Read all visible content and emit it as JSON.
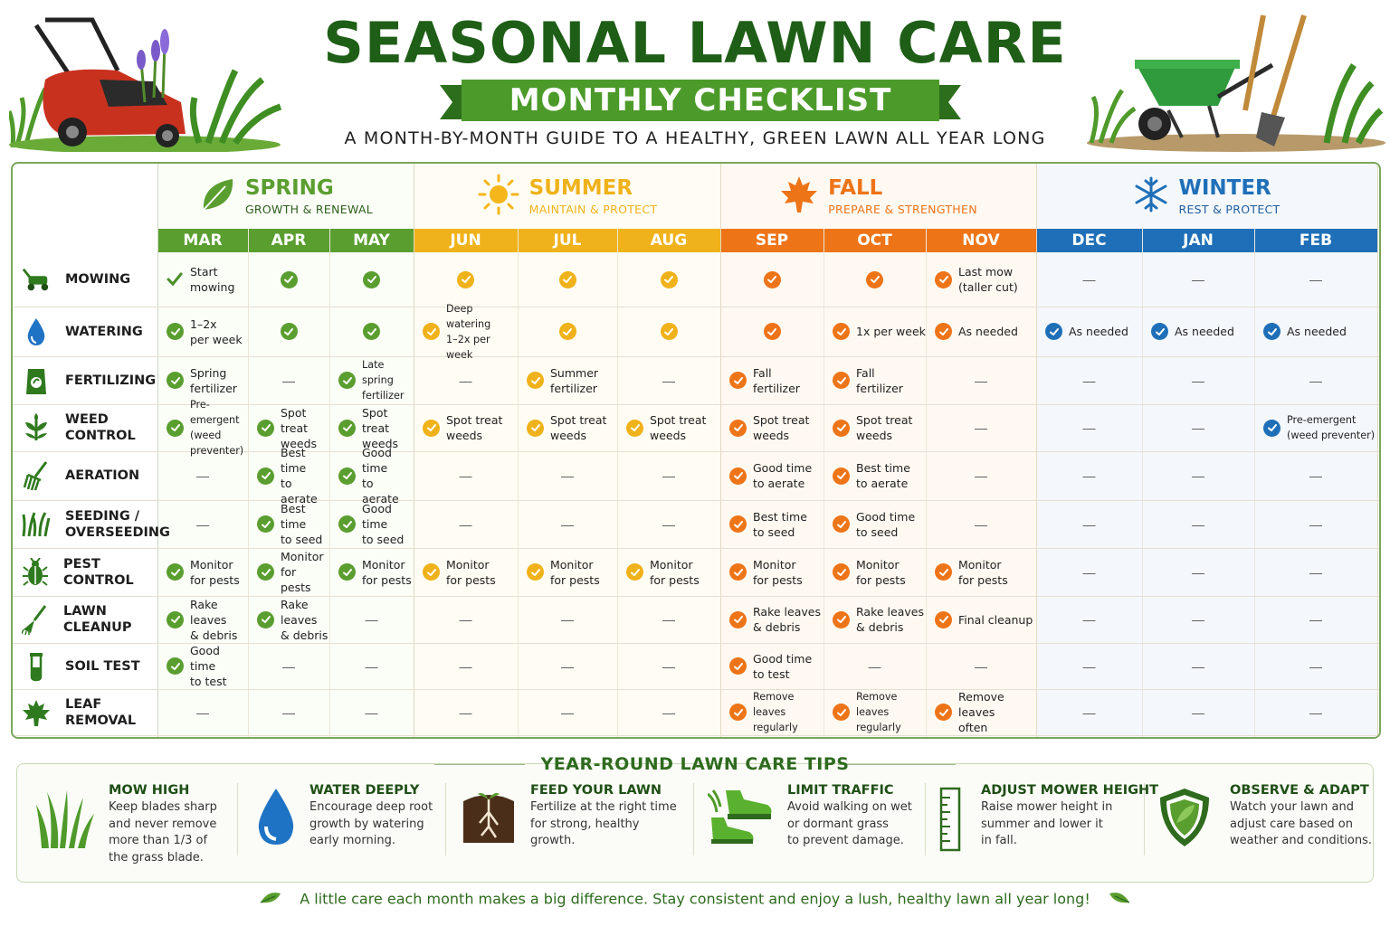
{
  "title": "SEASONAL LAWN CARE",
  "banner": "MONTHLY CHECKLIST",
  "subtitle": "A MONTH-BY-MONTH GUIDE TO A HEALTHY, GREEN LAWN ALL YEAR LONG",
  "colors": {
    "spring": "#5a9e2f",
    "summer": "#f0b21a",
    "fall": "#ee7418",
    "winter": "#1f6fb8",
    "title": "#1f5e17"
  },
  "seasons": [
    {
      "name": "SPRING",
      "sub": "GROWTH & RENEWAL",
      "icon": "leaf-icon"
    },
    {
      "name": "SUMMER",
      "sub": "MAINTAIN & PROTECT",
      "icon": "sun-icon"
    },
    {
      "name": "FALL",
      "sub": "PREPARE & STRENGTHEN",
      "icon": "maple-leaf-icon"
    },
    {
      "name": "WINTER",
      "sub": "REST & PROTECT",
      "icon": "snowflake-icon"
    }
  ],
  "months": [
    "MAR",
    "APR",
    "MAY",
    "JUN",
    "JUL",
    "AUG",
    "SEP",
    "OCT",
    "NOV",
    "DEC",
    "JAN",
    "FEB"
  ],
  "rows": [
    {
      "label": "MOWING",
      "icon": "lawn-mower-icon",
      "cells": [
        {
          "check": true,
          "plain": true,
          "text": "Start\nmowing"
        },
        {
          "check": true
        },
        {
          "check": true
        },
        {
          "check": true
        },
        {
          "check": true
        },
        {
          "check": true
        },
        {
          "check": true
        },
        {
          "check": true
        },
        {
          "check": true,
          "text": "Last mow\n(taller cut)"
        },
        {
          "dash": true
        },
        {
          "dash": true
        },
        {
          "dash": true
        }
      ]
    },
    {
      "label": "WATERING",
      "icon": "water-drop-icon",
      "cells": [
        {
          "check": true,
          "text": "1–2x\nper week"
        },
        {
          "check": true
        },
        {
          "check": true
        },
        {
          "check": true,
          "text": "Deep watering\n1–2x per week",
          "small": true
        },
        {
          "check": true
        },
        {
          "check": true
        },
        {
          "check": true
        },
        {
          "check": true,
          "text": "1x per week"
        },
        {
          "check": true,
          "text": "As needed"
        },
        {
          "check": true,
          "text": "As needed"
        },
        {
          "check": true,
          "text": "As needed"
        },
        {
          "check": true,
          "text": "As needed"
        }
      ]
    },
    {
      "label": "FERTILIZING",
      "icon": "fertilizer-bag-icon",
      "cells": [
        {
          "check": true,
          "text": "Spring\nfertilizer"
        },
        {
          "dash": true
        },
        {
          "check": true,
          "text": "Late spring\nfertilizer",
          "small": true
        },
        {
          "dash": true
        },
        {
          "check": true,
          "text": "Summer\nfertilizer"
        },
        {
          "dash": true
        },
        {
          "check": true,
          "text": "Fall\nfertilizer"
        },
        {
          "check": true,
          "text": "Fall\nfertilizer"
        },
        {
          "dash": true
        },
        {
          "dash": true
        },
        {
          "dash": true
        },
        {
          "dash": true
        }
      ]
    },
    {
      "label": "WEED CONTROL",
      "icon": "weed-icon",
      "cells": [
        {
          "check": true,
          "text": "Pre-emergent\n(weed preventer)",
          "small": true
        },
        {
          "check": true,
          "text": "Spot treat\nweeds"
        },
        {
          "check": true,
          "text": "Spot treat\nweeds"
        },
        {
          "check": true,
          "text": "Spot treat\nweeds"
        },
        {
          "check": true,
          "text": "Spot treat\nweeds"
        },
        {
          "check": true,
          "text": "Spot treat\nweeds"
        },
        {
          "check": true,
          "text": "Spot treat\nweeds"
        },
        {
          "check": true,
          "text": "Spot treat\nweeds"
        },
        {
          "dash": true
        },
        {
          "dash": true
        },
        {
          "dash": true
        },
        {
          "check": true,
          "text": "Pre-emergent\n(weed preventer)",
          "small": true
        }
      ]
    },
    {
      "label": "AERATION",
      "icon": "aerator-fork-icon",
      "cells": [
        {
          "dash": true
        },
        {
          "check": true,
          "text": "Best time\nto aerate"
        },
        {
          "check": true,
          "text": "Good time\nto aerate"
        },
        {
          "dash": true
        },
        {
          "dash": true
        },
        {
          "dash": true
        },
        {
          "check": true,
          "text": "Good time\nto aerate"
        },
        {
          "check": true,
          "text": "Best time\nto aerate"
        },
        {
          "dash": true
        },
        {
          "dash": true
        },
        {
          "dash": true
        },
        {
          "dash": true
        }
      ]
    },
    {
      "label": "SEEDING /\nOVERSEEDING",
      "icon": "grass-seed-icon",
      "cells": [
        {
          "dash": true
        },
        {
          "check": true,
          "text": "Best time\nto seed"
        },
        {
          "check": true,
          "text": "Good time\nto seed"
        },
        {
          "dash": true
        },
        {
          "dash": true
        },
        {
          "dash": true
        },
        {
          "check": true,
          "text": "Best time\nto seed"
        },
        {
          "check": true,
          "text": "Good time\nto seed"
        },
        {
          "dash": true
        },
        {
          "dash": true
        },
        {
          "dash": true
        },
        {
          "dash": true
        }
      ]
    },
    {
      "label": "PEST CONTROL",
      "icon": "bug-icon",
      "cells": [
        {
          "check": true,
          "text": "Monitor\nfor pests"
        },
        {
          "check": true,
          "text": "Monitor\nfor pests"
        },
        {
          "check": true,
          "text": "Monitor\nfor pests"
        },
        {
          "check": true,
          "text": "Monitor\nfor pests"
        },
        {
          "check": true,
          "text": "Monitor\nfor pests"
        },
        {
          "check": true,
          "text": "Monitor\nfor pests"
        },
        {
          "check": true,
          "text": "Monitor\nfor pests"
        },
        {
          "check": true,
          "text": "Monitor\nfor pests"
        },
        {
          "check": true,
          "text": "Monitor\nfor pests"
        },
        {
          "dash": true
        },
        {
          "dash": true
        },
        {
          "dash": true
        }
      ]
    },
    {
      "label": "LAWN CLEANUP",
      "icon": "rake-icon",
      "cells": [
        {
          "check": true,
          "text": "Rake leaves\n& debris"
        },
        {
          "check": true,
          "text": "Rake leaves\n& debris"
        },
        {
          "dash": true
        },
        {
          "dash": true
        },
        {
          "dash": true
        },
        {
          "dash": true
        },
        {
          "check": true,
          "text": "Rake leaves\n& debris"
        },
        {
          "check": true,
          "text": "Rake leaves\n& debris"
        },
        {
          "check": true,
          "text": "Final cleanup"
        },
        {
          "dash": true
        },
        {
          "dash": true
        },
        {
          "dash": true
        }
      ]
    },
    {
      "label": "SOIL TEST",
      "icon": "test-tube-icon",
      "cells": [
        {
          "check": true,
          "text": "Good time\nto test"
        },
        {
          "dash": true
        },
        {
          "dash": true
        },
        {
          "dash": true
        },
        {
          "dash": true
        },
        {
          "dash": true
        },
        {
          "check": true,
          "text": "Good time\nto test"
        },
        {
          "dash": true
        },
        {
          "dash": true
        },
        {
          "dash": true
        },
        {
          "dash": true
        },
        {
          "dash": true
        }
      ]
    },
    {
      "label": "LEAF REMOVAL",
      "icon": "leaf-removal-icon",
      "cells": [
        {
          "dash": true
        },
        {
          "dash": true
        },
        {
          "dash": true
        },
        {
          "dash": true
        },
        {
          "dash": true
        },
        {
          "dash": true
        },
        {
          "check": true,
          "text": "Remove leaves\nregularly",
          "small": true
        },
        {
          "check": true,
          "text": "Remove leaves\nregularly",
          "small": true
        },
        {
          "check": true,
          "text": "Remove leaves\noften"
        },
        {
          "dash": true
        },
        {
          "dash": true
        },
        {
          "dash": true
        }
      ]
    }
  ],
  "dash_symbol": "—",
  "tips_heading": "YEAR-ROUND LAWN CARE TIPS",
  "tips": [
    {
      "title": "MOW HIGH",
      "body": "Keep blades sharp\nand never remove\nmore than 1/3 of\nthe grass blade.",
      "icon": "grass-blades-icon"
    },
    {
      "title": "WATER DEEPLY",
      "body": "Encourage deep root\ngrowth by watering\nearly morning.",
      "icon": "water-drop-icon"
    },
    {
      "title": "FEED YOUR LAWN",
      "body": "Fertilize at the right time\nfor strong, healthy\ngrowth.",
      "icon": "soil-roots-icon"
    },
    {
      "title": "LIMIT TRAFFIC",
      "body": "Avoid walking on wet\nor dormant grass\nto prevent damage.",
      "icon": "shoes-icon"
    },
    {
      "title": "ADJUST MOWER HEIGHT",
      "body": "Raise mower height in\nsummer and lower it\nin fall.",
      "icon": "ruler-icon"
    },
    {
      "title": "OBSERVE & ADAPT",
      "body": "Watch your lawn and\nadjust care based on\nweather and conditions.",
      "icon": "shield-icon"
    }
  ],
  "footer": "A little care each month makes a big difference. Stay consistent and enjoy a lush, healthy lawn all year long!"
}
